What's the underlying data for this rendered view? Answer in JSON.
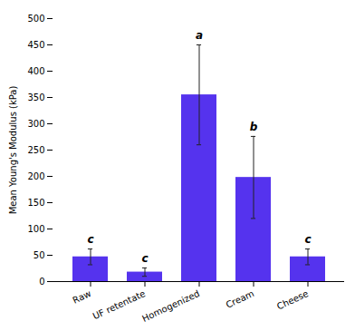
{
  "chart_data": {
    "type": "bar",
    "categories": [
      "Raw",
      "UF retentate",
      "Homogenized",
      "Cream",
      "Cheese"
    ],
    "values": [
      47,
      18,
      355,
      198,
      47
    ],
    "errors": [
      15,
      8,
      95,
      78,
      15
    ],
    "letters": [
      "c",
      "c",
      "a",
      "b",
      "c"
    ],
    "color": "#5533EE",
    "ylabel": "Mean Young's Modulus (kPa)",
    "ylim": [
      0,
      500
    ],
    "yticks": [
      0,
      50,
      100,
      150,
      200,
      250,
      300,
      350,
      400,
      450,
      500
    ],
    "grid": false
  }
}
